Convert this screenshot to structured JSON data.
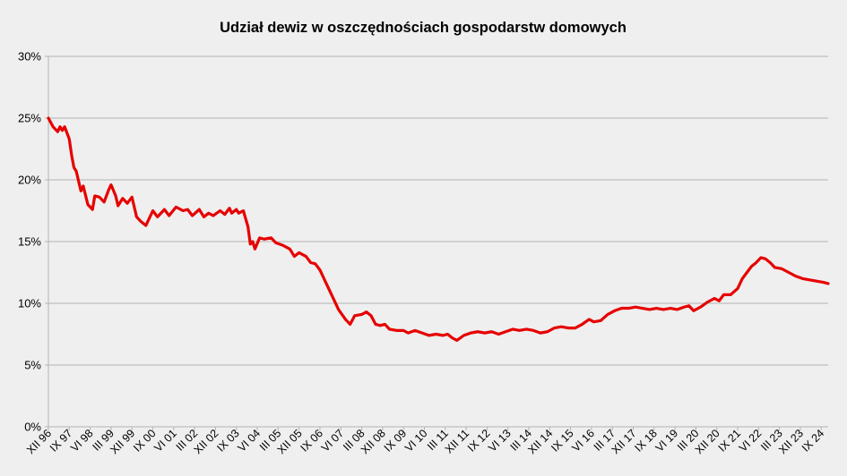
{
  "chart_data": {
    "type": "line",
    "title": "Udział dewiz w oszczędnościach gospodarstw domowych",
    "xlabel": "",
    "ylabel": "",
    "ylim": [
      0,
      30
    ],
    "y_ticks": [
      0,
      5,
      10,
      15,
      20,
      25,
      30
    ],
    "y_tick_labels": [
      "0%",
      "5%",
      "10%",
      "15%",
      "20%",
      "25%",
      "30%"
    ],
    "grid": true,
    "legend": "none",
    "line_color": "#e60000",
    "x_start": "1996-12",
    "x_end": "2024-12",
    "x_tick_labels": [
      "XII 96",
      "IX 97",
      "VI 98",
      "III 99",
      "XII 99",
      "IX 00",
      "VI 01",
      "III 02",
      "XII 02",
      "IX 03",
      "VI 04",
      "III 05",
      "XII 05",
      "IX 06",
      "VI 07",
      "III 08",
      "XII 08",
      "IX 09",
      "VI 10",
      "III 11",
      "XII 11",
      "IX 12",
      "VI 13",
      "III 14",
      "XII 14",
      "IX 15",
      "VI 16",
      "III 17",
      "XII 17",
      "IX 18",
      "VI 19",
      "III 20",
      "XII 20",
      "IX 21",
      "VI 22",
      "III 23",
      "XII 23",
      "IX 24"
    ],
    "series": [
      {
        "name": "",
        "points": [
          [
            "1996-12",
            25.0
          ],
          [
            "1997-02",
            24.3
          ],
          [
            "1997-04",
            23.9
          ],
          [
            "1997-05",
            24.3
          ],
          [
            "1997-06",
            24.0
          ],
          [
            "1997-07",
            24.3
          ],
          [
            "1997-09",
            23.3
          ],
          [
            "1997-10",
            22.0
          ],
          [
            "1997-11",
            21.0
          ],
          [
            "1997-12",
            20.7
          ],
          [
            "1998-02",
            19.1
          ],
          [
            "1998-03",
            19.5
          ],
          [
            "1998-05",
            18.0
          ],
          [
            "1998-07",
            17.6
          ],
          [
            "1998-08",
            18.7
          ],
          [
            "1998-10",
            18.6
          ],
          [
            "1998-12",
            18.2
          ],
          [
            "1999-02",
            19.2
          ],
          [
            "1999-03",
            19.6
          ],
          [
            "1999-05",
            18.7
          ],
          [
            "1999-06",
            17.9
          ],
          [
            "1999-08",
            18.5
          ],
          [
            "1999-10",
            18.1
          ],
          [
            "1999-12",
            18.6
          ],
          [
            "2000-02",
            17.0
          ],
          [
            "2000-04",
            16.6
          ],
          [
            "2000-06",
            16.3
          ],
          [
            "2000-09",
            17.5
          ],
          [
            "2000-11",
            17.0
          ],
          [
            "2001-02",
            17.6
          ],
          [
            "2001-04",
            17.1
          ],
          [
            "2001-07",
            17.8
          ],
          [
            "2001-10",
            17.5
          ],
          [
            "2001-12",
            17.6
          ],
          [
            "2002-02",
            17.1
          ],
          [
            "2002-05",
            17.6
          ],
          [
            "2002-07",
            17.0
          ],
          [
            "2002-09",
            17.3
          ],
          [
            "2002-11",
            17.1
          ],
          [
            "2003-02",
            17.5
          ],
          [
            "2003-04",
            17.2
          ],
          [
            "2003-06",
            17.7
          ],
          [
            "2003-07",
            17.3
          ],
          [
            "2003-09",
            17.6
          ],
          [
            "2003-10",
            17.3
          ],
          [
            "2003-12",
            17.5
          ],
          [
            "2004-02",
            16.2
          ],
          [
            "2004-03",
            14.8
          ],
          [
            "2004-04",
            15.0
          ],
          [
            "2004-05",
            14.4
          ],
          [
            "2004-07",
            15.3
          ],
          [
            "2004-09",
            15.2
          ],
          [
            "2004-12",
            15.3
          ],
          [
            "2005-02",
            14.9
          ],
          [
            "2005-05",
            14.7
          ],
          [
            "2005-08",
            14.4
          ],
          [
            "2005-10",
            13.8
          ],
          [
            "2005-12",
            14.1
          ],
          [
            "2006-03",
            13.8
          ],
          [
            "2006-05",
            13.3
          ],
          [
            "2006-07",
            13.2
          ],
          [
            "2006-09",
            12.7
          ],
          [
            "2006-12",
            11.5
          ],
          [
            "2007-03",
            10.3
          ],
          [
            "2007-05",
            9.5
          ],
          [
            "2007-08",
            8.7
          ],
          [
            "2007-10",
            8.3
          ],
          [
            "2007-12",
            9.0
          ],
          [
            "2008-03",
            9.1
          ],
          [
            "2008-05",
            9.3
          ],
          [
            "2008-07",
            9.0
          ],
          [
            "2008-09",
            8.3
          ],
          [
            "2008-11",
            8.2
          ],
          [
            "2009-01",
            8.3
          ],
          [
            "2009-03",
            7.9
          ],
          [
            "2009-06",
            7.8
          ],
          [
            "2009-09",
            7.8
          ],
          [
            "2009-11",
            7.6
          ],
          [
            "2010-02",
            7.8
          ],
          [
            "2010-05",
            7.6
          ],
          [
            "2010-08",
            7.4
          ],
          [
            "2010-11",
            7.5
          ],
          [
            "2011-02",
            7.4
          ],
          [
            "2011-04",
            7.5
          ],
          [
            "2011-06",
            7.2
          ],
          [
            "2011-08",
            7.0
          ],
          [
            "2011-11",
            7.4
          ],
          [
            "2012-02",
            7.6
          ],
          [
            "2012-05",
            7.7
          ],
          [
            "2012-08",
            7.6
          ],
          [
            "2012-11",
            7.7
          ],
          [
            "2013-02",
            7.5
          ],
          [
            "2013-05",
            7.7
          ],
          [
            "2013-08",
            7.9
          ],
          [
            "2013-11",
            7.8
          ],
          [
            "2014-02",
            7.9
          ],
          [
            "2014-05",
            7.8
          ],
          [
            "2014-08",
            7.6
          ],
          [
            "2014-11",
            7.7
          ],
          [
            "2015-02",
            8.0
          ],
          [
            "2015-05",
            8.1
          ],
          [
            "2015-08",
            8.0
          ],
          [
            "2015-11",
            8.0
          ],
          [
            "2016-02",
            8.3
          ],
          [
            "2016-05",
            8.7
          ],
          [
            "2016-07",
            8.5
          ],
          [
            "2016-10",
            8.6
          ],
          [
            "2017-01",
            9.1
          ],
          [
            "2017-04",
            9.4
          ],
          [
            "2017-07",
            9.6
          ],
          [
            "2017-10",
            9.6
          ],
          [
            "2018-01",
            9.7
          ],
          [
            "2018-04",
            9.6
          ],
          [
            "2018-07",
            9.5
          ],
          [
            "2018-10",
            9.6
          ],
          [
            "2019-01",
            9.5
          ],
          [
            "2019-04",
            9.6
          ],
          [
            "2019-07",
            9.5
          ],
          [
            "2019-10",
            9.7
          ],
          [
            "2019-12",
            9.8
          ],
          [
            "2020-02",
            9.4
          ],
          [
            "2020-05",
            9.7
          ],
          [
            "2020-08",
            10.1
          ],
          [
            "2020-11",
            10.4
          ],
          [
            "2021-01",
            10.2
          ],
          [
            "2021-03",
            10.7
          ],
          [
            "2021-06",
            10.7
          ],
          [
            "2021-09",
            11.2
          ],
          [
            "2021-11",
            12.0
          ],
          [
            "2022-01",
            12.5
          ],
          [
            "2022-03",
            13.0
          ],
          [
            "2022-05",
            13.3
          ],
          [
            "2022-07",
            13.7
          ],
          [
            "2022-09",
            13.6
          ],
          [
            "2022-11",
            13.3
          ],
          [
            "2023-01",
            12.9
          ],
          [
            "2023-04",
            12.8
          ],
          [
            "2023-07",
            12.5
          ],
          [
            "2023-10",
            12.2
          ],
          [
            "2024-01",
            12.0
          ],
          [
            "2024-04",
            11.9
          ],
          [
            "2024-07",
            11.8
          ],
          [
            "2024-10",
            11.7
          ],
          [
            "2024-12",
            11.6
          ]
        ]
      }
    ]
  }
}
